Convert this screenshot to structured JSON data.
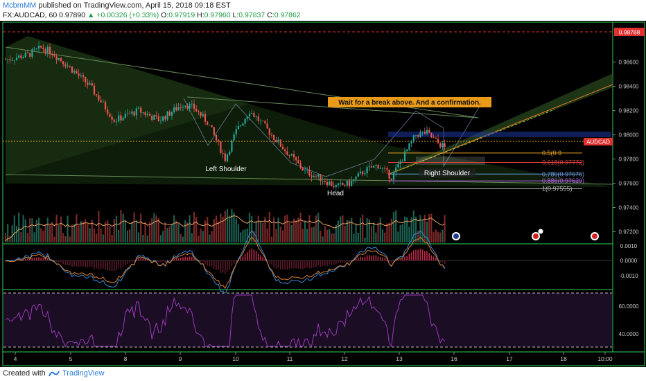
{
  "header": {
    "publisher": "McbmMM",
    "published_text": "published on TradingView.com, April 15, 2018 09:18 EST",
    "symbol": "FX:AUDCAD, 60",
    "last": "0.97890",
    "change": "+0.00326 (+0.33%)",
    "o_label": "O:",
    "o": "0.97919",
    "h_label": "H:",
    "h": "0.97960",
    "l_label": "L:",
    "l": "0.97837",
    "c_label": "C:",
    "c": "0.97862"
  },
  "footer": {
    "created_with": "Created with",
    "brand": "TradingView"
  },
  "chart_data": {
    "type": "candlestick",
    "symbol_tag": "AUDCAD",
    "price_marker": "0.98768",
    "y_range": [
      0.971,
      0.9893
    ],
    "price_ticks": [
      "0.98600",
      "0.98400",
      "0.98200",
      "0.98000",
      "0.97800",
      "0.97600",
      "0.97400",
      "0.97200"
    ],
    "x_ticks": [
      "4",
      "5",
      "8",
      "9",
      "10",
      "11",
      "12",
      "13",
      "16",
      "17",
      "18",
      "10:00"
    ],
    "annotations": {
      "callout": "Wait for a break above. And a confirmation.",
      "left_shoulder": "Left Shoulder",
      "head": "Head",
      "right_shoulder": "Right Shoulder"
    },
    "fib_levels": [
      {
        "label": "0.5(0.9",
        "price": 0.9785,
        "color": "#e8a020"
      },
      {
        "label": "0.618(0.97772)",
        "price": 0.97772,
        "color": "#e04040"
      },
      {
        "label": "0.786(0.97676)",
        "price": 0.97676,
        "color": "#6aa0e0"
      },
      {
        "label": "0.886(0.97620)",
        "price": 0.9762,
        "color": "#b060e0"
      },
      {
        "label": "1(0.97555)",
        "price": 0.97555,
        "color": "#bbbbbb"
      }
    ],
    "macd_ticks": [
      "0.0010",
      "0.0000",
      "-0.0010"
    ],
    "rsi_ticks": [
      "60.0000",
      "40.0000"
    ],
    "colors": {
      "up": "#26a69a",
      "down": "#ef5350",
      "background": "#000000",
      "frame": "#2fd05c"
    }
  }
}
